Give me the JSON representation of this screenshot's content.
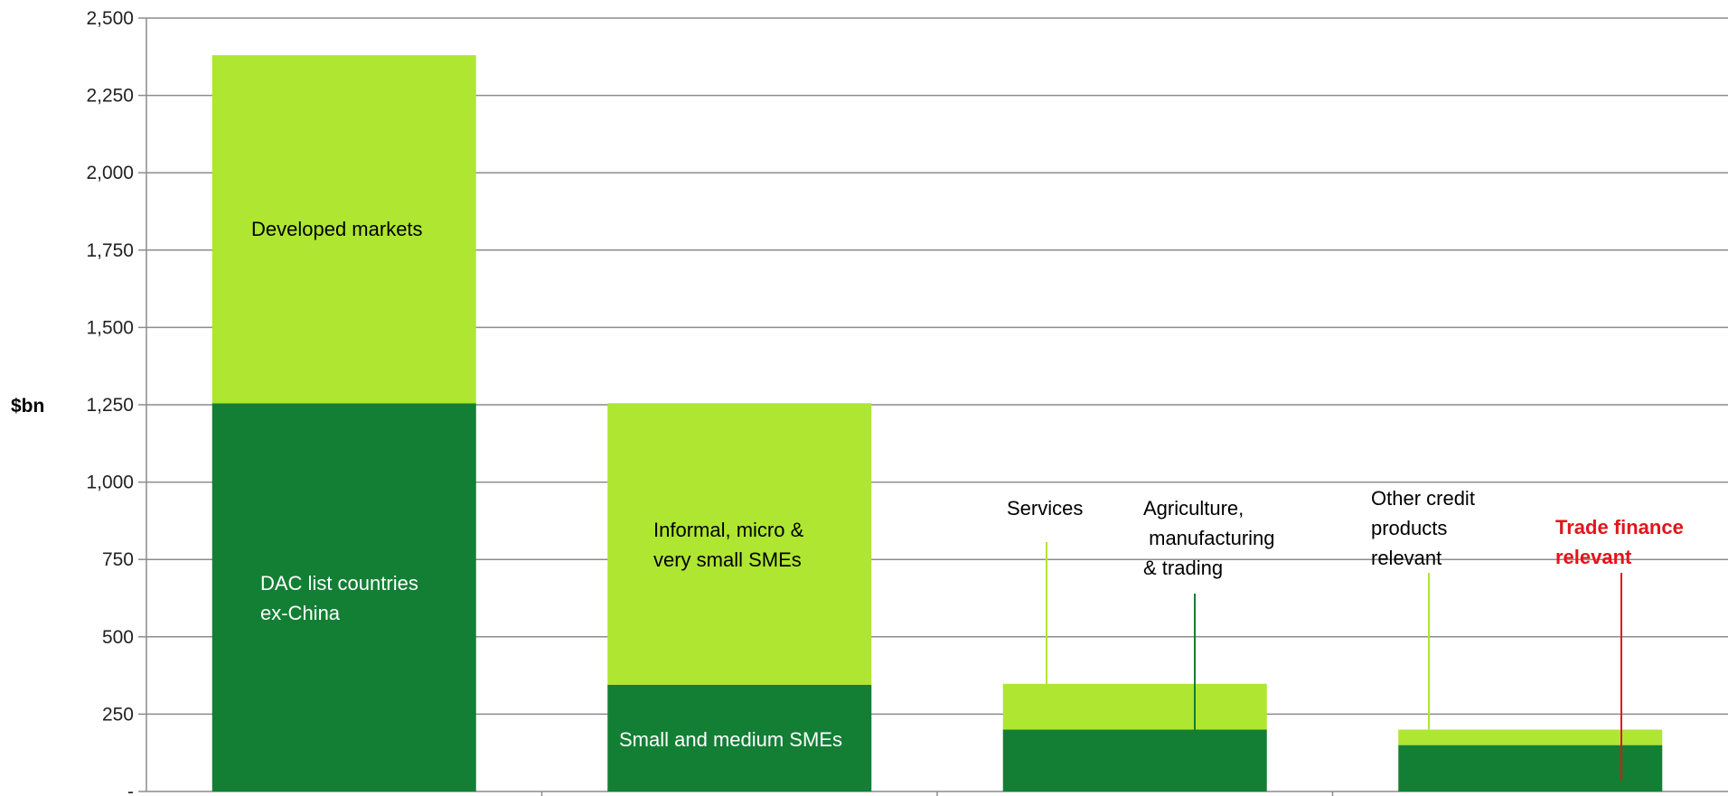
{
  "chart_data": {
    "type": "bar",
    "stacked": true,
    "ylabel": "$bn",
    "ylim": [
      0,
      2500
    ],
    "yticks": [
      0,
      250,
      500,
      750,
      1000,
      1250,
      1500,
      1750,
      2000,
      2250,
      2500
    ],
    "ytick_labels": [
      "-",
      "250",
      "500",
      "750",
      "1,000",
      "1,250",
      "1,500",
      "1,750",
      "2,000",
      "2,250",
      "2,500"
    ],
    "grid": true,
    "legend": "none",
    "colors": {
      "dark": "#137f35",
      "light": "#aee632",
      "red": "#e3141a"
    },
    "bars": [
      {
        "segments": [
          {
            "value": 1255,
            "color": "dark",
            "label": "DAC list countries ex-China",
            "label_lines": [
              "DAC list countries",
              "ex-China"
            ]
          },
          {
            "value": 1125,
            "color": "light",
            "label": "Developed markets",
            "label_lines": [
              "Developed markets"
            ]
          }
        ]
      },
      {
        "segments": [
          {
            "value": 345,
            "color": "dark",
            "label": "Small and medium SMEs",
            "label_lines": [
              "Small and medium SMEs"
            ]
          },
          {
            "value": 910,
            "color": "light",
            "label": "Informal, micro & very small SMEs",
            "label_lines": [
              "Informal, micro &",
              "very small SMEs"
            ]
          }
        ]
      },
      {
        "segments": [
          {
            "value": 200,
            "color": "dark",
            "label": "Agriculture, manufacturing & trading",
            "label_lines": [
              "Agriculture,",
              " manufacturing",
              "& trading"
            ]
          },
          {
            "value": 148,
            "color": "light",
            "label": "Services",
            "label_lines": [
              "Services"
            ]
          }
        ]
      },
      {
        "segments": [
          {
            "value": 150,
            "color": "dark",
            "label": "Trade finance relevant",
            "label_lines": [
              "Trade finance",
              "relevant"
            ]
          },
          {
            "value": 50,
            "color": "light",
            "label": "Other credit products relevant",
            "label_lines": [
              "Other credit",
              "products",
              "relevant"
            ]
          }
        ]
      }
    ]
  }
}
